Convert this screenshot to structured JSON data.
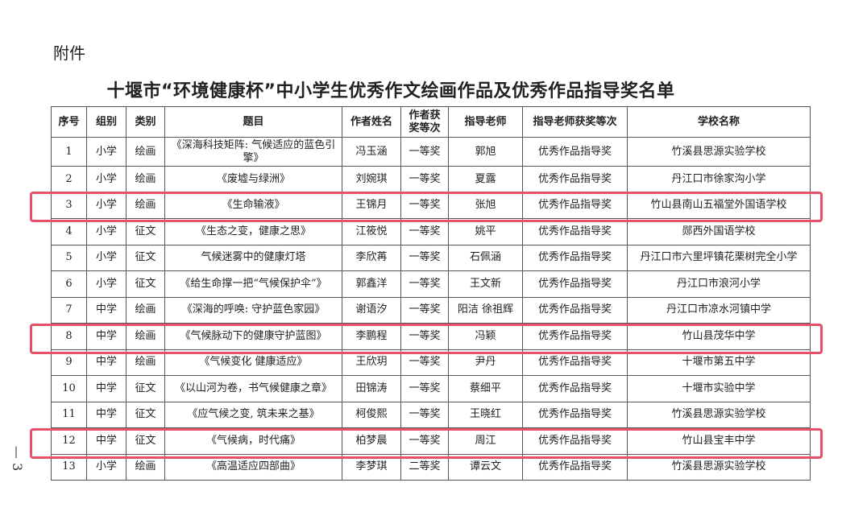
{
  "attachment_label": "附件",
  "title": "十堰市“环境健康杯”中小学生优秀作文绘画作品及优秀作品指导奖名单",
  "page_number": "— 3",
  "highlight_color": "#e8506a",
  "highlighted_rows": [
    3,
    8,
    12
  ],
  "headers": [
    "序号",
    "组别",
    "类别",
    "题目",
    "作者姓名",
    "作者获奖等次",
    "指导老师",
    "指导老师获奖等次",
    "学校名称"
  ],
  "rows": [
    [
      "1",
      "小学",
      "绘画",
      "《深海科技矩阵: 气候适应的蓝色引擎》",
      "冯玉涵",
      "一等奖",
      "郭旭",
      "优秀作品指导奖",
      "竹溪县思源实验学校"
    ],
    [
      "2",
      "小学",
      "绘画",
      "《废墟与绿洲》",
      "刘婉琪",
      "一等奖",
      "夏露",
      "优秀作品指导奖",
      "丹江口市徐家沟小学"
    ],
    [
      "3",
      "小学",
      "绘画",
      "《生命输液》",
      "王锦月",
      "一等奖",
      "张旭",
      "优秀作品指导奖",
      "竹山县南山五福堂外国语学校"
    ],
    [
      "4",
      "小学",
      "征文",
      "《生态之变，健康之思》",
      "江筱悦",
      "一等奖",
      "姚平",
      "优秀作品指导奖",
      "郧西外国语学校"
    ],
    [
      "5",
      "小学",
      "征文",
      "气候迷雾中的健康灯塔",
      "李欣苒",
      "一等奖",
      "石佩涵",
      "优秀作品指导奖",
      "丹江口市六里坪镇花栗树完全小学"
    ],
    [
      "6",
      "小学",
      "征文",
      "《给生命撑一把“气候保护伞”》",
      "郭鑫洋",
      "一等奖",
      "王文新",
      "优秀作品指导奖",
      "丹江口市浪河小学"
    ],
    [
      "7",
      "中学",
      "绘画",
      "《深海的呼唤: 守护蓝色家园》",
      "谢语汐",
      "一等奖",
      "阳洁 徐祖辉",
      "优秀作品指导奖",
      "丹江口市凉水河镇中学"
    ],
    [
      "8",
      "中学",
      "绘画",
      "《气候脉动下的健康守护蓝图》",
      "李鹏程",
      "一等奖",
      "冯颖",
      "优秀作品指导奖",
      "竹山县茂华中学"
    ],
    [
      "9",
      "中学",
      "绘画",
      "《气候变化 健康适应》",
      "王欣玥",
      "一等奖",
      "尹丹",
      "优秀作品指导奖",
      "十堰市第五中学"
    ],
    [
      "10",
      "中学",
      "征文",
      "《以山河为卷，书气候健康之章》",
      "田锦涛",
      "一等奖",
      "蔡细平",
      "优秀作品指导奖",
      "十堰市实验中学"
    ],
    [
      "11",
      "中学",
      "征文",
      "《应气候之变, 筑未来之基》",
      "柯俊熙",
      "一等奖",
      "王晓红",
      "优秀作品指导奖",
      "竹溪县思源实验学校"
    ],
    [
      "12",
      "中学",
      "征文",
      "《气候病，时代痛》",
      "柏梦晨",
      "一等奖",
      "周江",
      "优秀作品指导奖",
      "竹山县宝丰中学"
    ],
    [
      "13",
      "小学",
      "绘画",
      "《高温适应四部曲》",
      "李梦琪",
      "二等奖",
      "谭云文",
      "优秀作品指导奖",
      "竹溪县思源实验学校"
    ]
  ]
}
